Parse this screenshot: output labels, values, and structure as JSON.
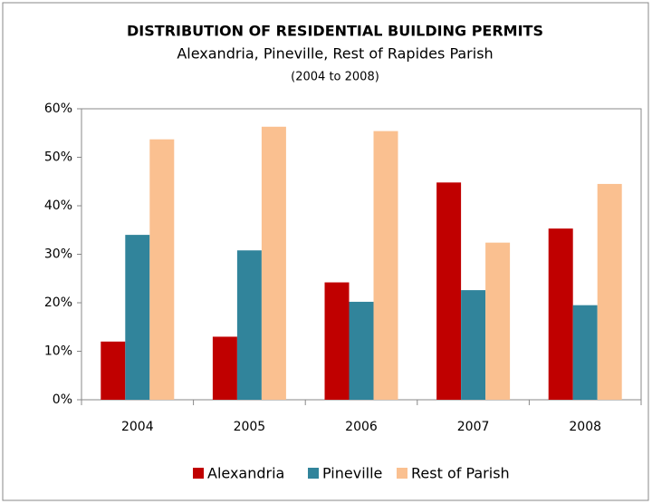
{
  "chart_data": {
    "type": "bar",
    "title": "DISTRIBUTION OF RESIDENTIAL BUILDING PERMITS",
    "subtitle": "Alexandria, Pineville, Rest of Rapides Parish",
    "note": "(2004 to 2008)",
    "categories": [
      "2004",
      "2005",
      "2006",
      "2007",
      "2008"
    ],
    "series": [
      {
        "name": "Alexandria",
        "color": "#c00000",
        "values": [
          12,
          13,
          24.2,
          44.8,
          35.3
        ]
      },
      {
        "name": "Pineville",
        "color": "#31849b",
        "values": [
          34,
          30.8,
          20.2,
          22.6,
          19.5
        ]
      },
      {
        "name": "Rest of Parish",
        "color": "#fac090",
        "values": [
          53.7,
          56.3,
          55.4,
          32.4,
          44.5
        ]
      }
    ],
    "ylim": [
      0,
      60
    ],
    "yticks": [
      {
        "value": 0,
        "label": "0%"
      },
      {
        "value": 10,
        "label": "10%"
      },
      {
        "value": 20,
        "label": "20%"
      },
      {
        "value": 30,
        "label": "30%"
      },
      {
        "value": 40,
        "label": "40%"
      },
      {
        "value": 50,
        "label": "50%"
      },
      {
        "value": 60,
        "label": "60%"
      }
    ],
    "grid": false,
    "legend": "bottom"
  }
}
